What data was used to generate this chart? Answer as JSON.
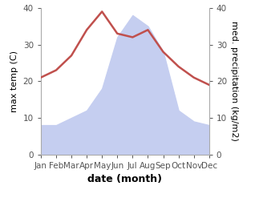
{
  "months": [
    "Jan",
    "Feb",
    "Mar",
    "Apr",
    "May",
    "Jun",
    "Jul",
    "Aug",
    "Sep",
    "Oct",
    "Nov",
    "Dec"
  ],
  "temperature": [
    21,
    23,
    27,
    34,
    39,
    33,
    32,
    34,
    28,
    24,
    21,
    19
  ],
  "precipitation": [
    8,
    8,
    10,
    12,
    18,
    32,
    38,
    35,
    28,
    12,
    9,
    8
  ],
  "temp_color": "#c0504d",
  "precip_fill_color": "#c5cef0",
  "background_color": "#ffffff",
  "xlabel": "date (month)",
  "ylabel_left": "max temp (C)",
  "ylabel_right": "med. precipitation (kg/m2)",
  "ylim": [
    0,
    40
  ],
  "xlabel_fontsize": 9,
  "ylabel_fontsize": 8,
  "tick_fontsize": 7.5
}
